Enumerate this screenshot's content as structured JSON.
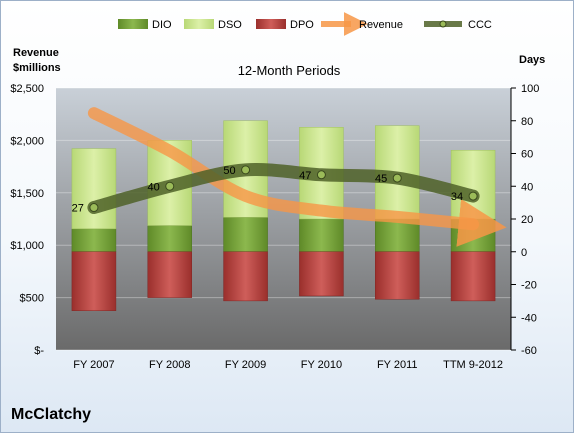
{
  "company": "McClatchy",
  "chart_data": {
    "type": "bar",
    "title": "12-Month Periods",
    "categories": [
      "FY 2007",
      "FY 2008",
      "FY 2009",
      "FY 2010",
      "FY 2011",
      "TTM 9-2012"
    ],
    "left_axis": {
      "title_line1": "Revenue",
      "title_line2": "$millions",
      "ylim": [
        0,
        2500
      ],
      "ticks": [
        0,
        500,
        1000,
        1500,
        2000,
        2500
      ],
      "tick_labels": [
        "$-",
        "$500",
        "$1,000",
        "$1,500",
        "$2,000",
        "$2,500"
      ]
    },
    "right_axis": {
      "title": "Days",
      "ylim": [
        -60,
        100
      ],
      "ticks": [
        -60,
        -40,
        -20,
        0,
        20,
        40,
        60,
        80,
        100
      ],
      "tick_labels": [
        "-60",
        "-40",
        "-20",
        "0",
        "20",
        "40",
        "60",
        "80",
        "100"
      ]
    },
    "legend": {
      "position": "top",
      "entries": [
        "DIO",
        "DSO",
        "DPO",
        "Revenue",
        "CCC"
      ]
    },
    "series": [
      {
        "name": "DIO",
        "axis": "right",
        "stack": "positive",
        "values": [
          14,
          16,
          21,
          20,
          20,
          20
        ]
      },
      {
        "name": "DSO",
        "axis": "right",
        "stack": "positive",
        "values": [
          49,
          52,
          59,
          56,
          57,
          42
        ]
      },
      {
        "name": "DPO",
        "axis": "right",
        "stack": "negative",
        "values": [
          -36,
          -28,
          -30,
          -27,
          -29,
          -30
        ]
      },
      {
        "name": "Revenue",
        "axis": "left",
        "type": "line",
        "values": [
          2260,
          1900,
          1470,
          1330,
          1270,
          1200
        ]
      },
      {
        "name": "CCC",
        "axis": "right",
        "type": "line",
        "values": [
          27,
          40,
          50,
          47,
          45,
          34
        ],
        "data_labels": [
          "27",
          "40",
          "50",
          "47",
          "45",
          "34"
        ]
      }
    ],
    "colors": {
      "DIO": "#77a03c",
      "DSO": "#c9e58c",
      "DPO": "#c0504d",
      "Revenue": "#f79646",
      "CCC": "#4f6228",
      "plot_top": "#c9d0d8",
      "plot_bottom": "#6a6a6a"
    },
    "grid": true
  }
}
